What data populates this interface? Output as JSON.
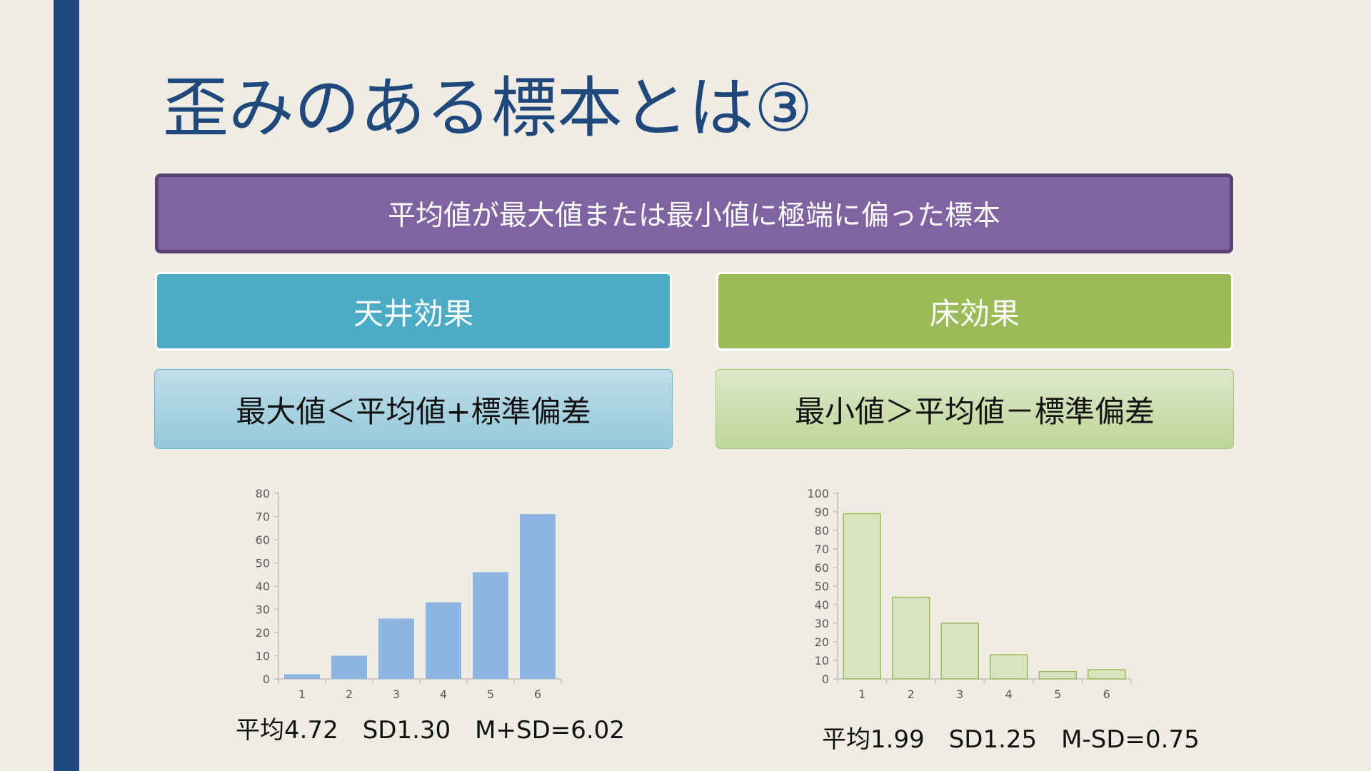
{
  "slide": {
    "title": "歪みのある標本とは③",
    "definition": "平均値が最大値または最小値に極端に偏った標本",
    "ceiling": {
      "header": "天井効果",
      "condition": "最大値＜平均値+標準偏差",
      "stats": "平均4.72　SD1.30　M+SD=6.02"
    },
    "floor": {
      "header": "床効果",
      "condition": "最小値＞平均値－標準偏差",
      "stats": "平均1.99　SD1.25　M-SD=0.75"
    }
  },
  "colors": {
    "accent": "#1F497D",
    "purple": "#8064A2",
    "ceiling": "#4BACC6",
    "floor": "#9BBB59",
    "ceiling_bar": "#8EB4E3",
    "floor_bar": "#D7E4BD",
    "floor_bar_border": "#9BBB59"
  },
  "chart_data": [
    {
      "type": "bar",
      "categories": [
        "1",
        "2",
        "3",
        "4",
        "5",
        "6"
      ],
      "values": [
        2,
        10,
        26,
        33,
        46,
        71
      ],
      "ylim": [
        0,
        80
      ],
      "yticks": [
        0,
        10,
        20,
        30,
        40,
        50,
        60,
        70,
        80
      ],
      "grid": false,
      "legend": "none"
    },
    {
      "type": "bar",
      "categories": [
        "1",
        "2",
        "3",
        "4",
        "5",
        "6"
      ],
      "values": [
        89,
        44,
        30,
        13,
        4,
        5
      ],
      "ylim": [
        0,
        100
      ],
      "yticks": [
        0,
        10,
        20,
        30,
        40,
        50,
        60,
        70,
        80,
        90,
        100
      ],
      "grid": false,
      "legend": "none"
    }
  ]
}
